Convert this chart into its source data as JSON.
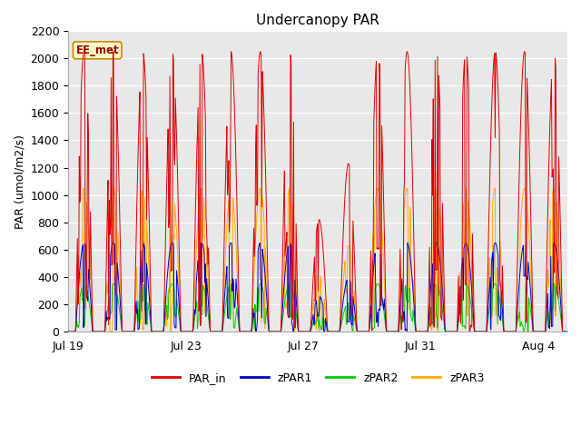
{
  "title": "Undercanopy PAR",
  "ylabel": "PAR (umol/m2/s)",
  "ylim": [
    0,
    2200
  ],
  "yticks": [
    0,
    200,
    400,
    600,
    800,
    1000,
    1200,
    1400,
    1600,
    1800,
    2000,
    2200
  ],
  "xtick_labels": [
    "Jul 19",
    "Jul 23",
    "Jul 27",
    "Jul 31",
    "Aug 4"
  ],
  "xtick_positions": [
    0,
    4,
    8,
    12,
    16
  ],
  "legend_labels": [
    "PAR_in",
    "zPAR1",
    "zPAR2",
    "zPAR3"
  ],
  "line_colors": [
    "#dd0000",
    "#0000cc",
    "#00cc00",
    "#ffaa00"
  ],
  "annotation_text": "EE_met",
  "annotation_color": "#990000",
  "annotation_bg": "#ffffcc",
  "fig_bg": "#ffffff",
  "plot_bg": "#e8e8e8",
  "n_days": 17,
  "par_in_max": 2050,
  "zpar1_max": 650,
  "zpar2_max": 350,
  "zpar3_max": 1050,
  "points_per_day": 48,
  "linewidth": 0.7
}
